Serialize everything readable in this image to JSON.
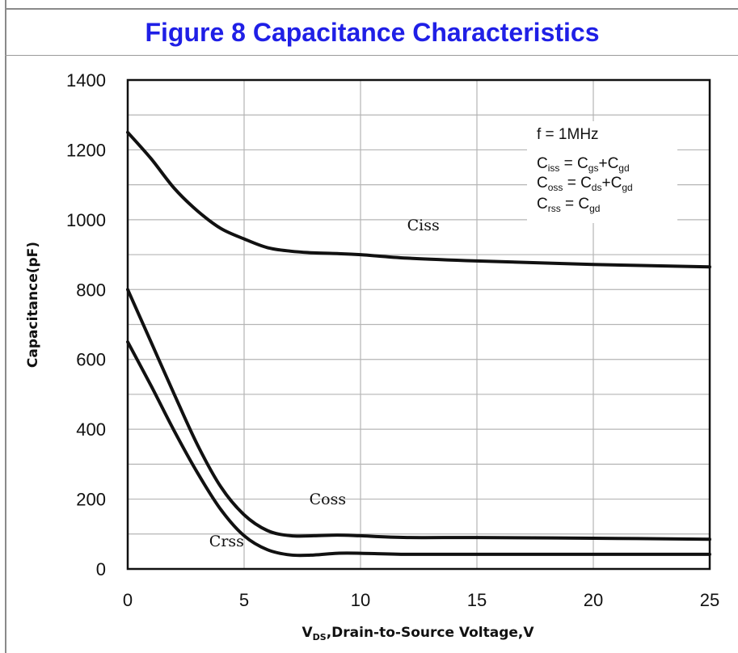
{
  "chart_data": {
    "type": "line",
    "title": "Figure 8 Capacitance Characteristics",
    "xlabel_main": "V",
    "xlabel_sub": "DS",
    "xlabel_rest": ",Drain-to-Source Voltage,V",
    "ylabel": "Capacitance(pF)",
    "xlim": [
      0,
      25
    ],
    "ylim": [
      0,
      1400
    ],
    "xticks": [
      0,
      5,
      10,
      15,
      20,
      25
    ],
    "yticks": [
      0,
      200,
      400,
      600,
      800,
      1000,
      1200,
      1400
    ],
    "grid": true,
    "series": [
      {
        "name": "Ciss",
        "x": [
          0,
          1,
          2,
          3,
          4,
          5,
          6,
          7,
          8,
          9,
          10,
          12,
          15,
          20,
          25
        ],
        "y": [
          1250,
          1175,
          1090,
          1025,
          975,
          945,
          920,
          910,
          905,
          903,
          900,
          890,
          882,
          872,
          865
        ]
      },
      {
        "name": "Coss",
        "x": [
          0,
          1,
          2,
          3,
          4,
          5,
          6,
          7,
          8,
          9,
          10,
          12,
          15,
          20,
          25
        ],
        "y": [
          800,
          650,
          500,
          355,
          235,
          155,
          110,
          95,
          95,
          97,
          95,
          90,
          90,
          88,
          85
        ]
      },
      {
        "name": "Crss",
        "x": [
          0,
          1,
          2,
          3,
          4,
          5,
          6,
          7,
          8,
          9,
          10,
          12,
          15,
          20,
          25
        ],
        "y": [
          650,
          525,
          395,
          275,
          170,
          95,
          55,
          40,
          40,
          45,
          45,
          42,
          42,
          42,
          42
        ]
      }
    ],
    "curve_labels": [
      {
        "text": "Ciss",
        "x": 12,
        "y": 970
      },
      {
        "text": "Coss",
        "x": 7.8,
        "y": 185
      },
      {
        "text": "Crss",
        "x": 3.5,
        "y": 65
      }
    ],
    "annotation": {
      "line1": "f = 1MHz",
      "line2": {
        "a": "C",
        "a_sub": "iss",
        "eq": " = C",
        "b_sub": "gs",
        "plus": "+C",
        "c_sub": "gd"
      },
      "line3": {
        "a": "C",
        "a_sub": "oss",
        "eq": " = C",
        "b_sub": "ds",
        "plus": "+C",
        "c_sub": "gd"
      },
      "line4": {
        "a": "C",
        "a_sub": "rss",
        "eq": " = C",
        "b_sub": "gd"
      }
    },
    "colors": {
      "title": "#1f1fe6",
      "line": "#111111",
      "grid": "#b5b5b5"
    }
  }
}
